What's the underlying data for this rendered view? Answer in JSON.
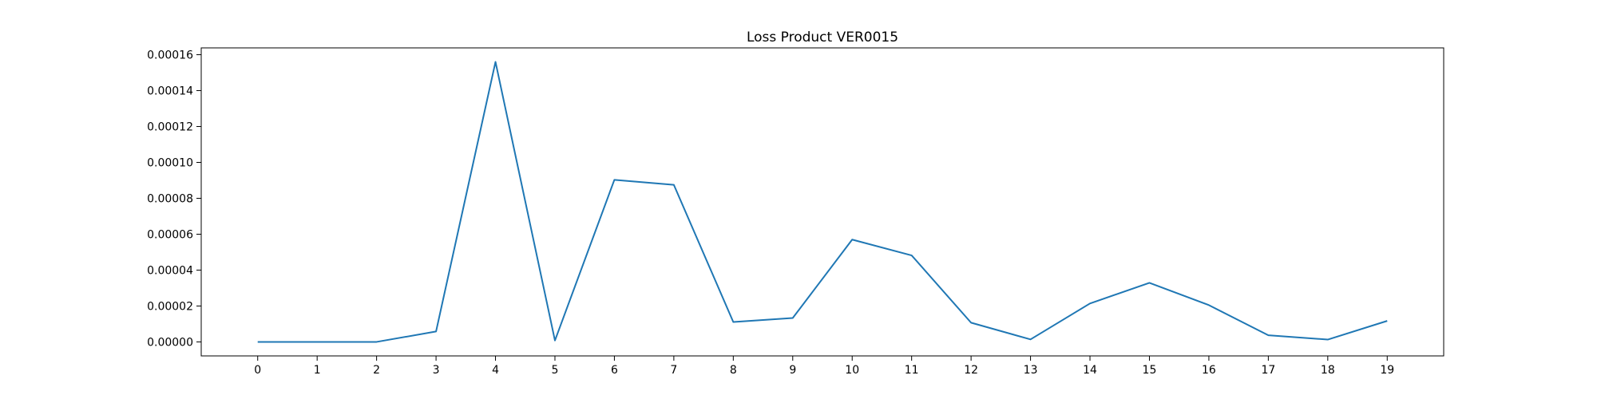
{
  "chart_data": {
    "type": "line",
    "title": "Loss Product VER0015",
    "xlabel": "",
    "ylabel": "",
    "x": [
      0,
      1,
      2,
      3,
      4,
      5,
      6,
      7,
      8,
      9,
      10,
      11,
      12,
      13,
      14,
      15,
      16,
      17,
      18,
      19
    ],
    "series": [
      {
        "values": [
          0.0,
          0.0,
          0.0,
          5.8e-06,
          0.000156,
          8e-07,
          9.03e-05,
          8.75e-05,
          1.11e-05,
          1.33e-05,
          5.7e-05,
          4.82e-05,
          1.07e-05,
          1.4e-06,
          2.14e-05,
          3.29e-05,
          2.05e-05,
          3.7e-06,
          1.3e-06,
          1.17e-05
        ],
        "color": "#1f77b4"
      }
    ],
    "x_ticks": [
      "0",
      "1",
      "2",
      "3",
      "4",
      "5",
      "6",
      "7",
      "8",
      "9",
      "10",
      "11",
      "12",
      "13",
      "14",
      "15",
      "16",
      "17",
      "18",
      "19"
    ],
    "y_ticks": [
      {
        "value": 0.0,
        "label": "0.00000"
      },
      {
        "value": 2e-05,
        "label": "0.00002"
      },
      {
        "value": 4e-05,
        "label": "0.00004"
      },
      {
        "value": 6e-05,
        "label": "0.00006"
      },
      {
        "value": 8e-05,
        "label": "0.00008"
      },
      {
        "value": 0.0001,
        "label": "0.00010"
      },
      {
        "value": 0.00012,
        "label": "0.00012"
      },
      {
        "value": 0.00014,
        "label": "0.00014"
      },
      {
        "value": 0.00016,
        "label": "0.00016"
      }
    ],
    "xlim": [
      -0.95,
      19.95
    ],
    "ylim": [
      -7.8e-06,
      0.0001638
    ],
    "grid": false,
    "legend": "none"
  }
}
